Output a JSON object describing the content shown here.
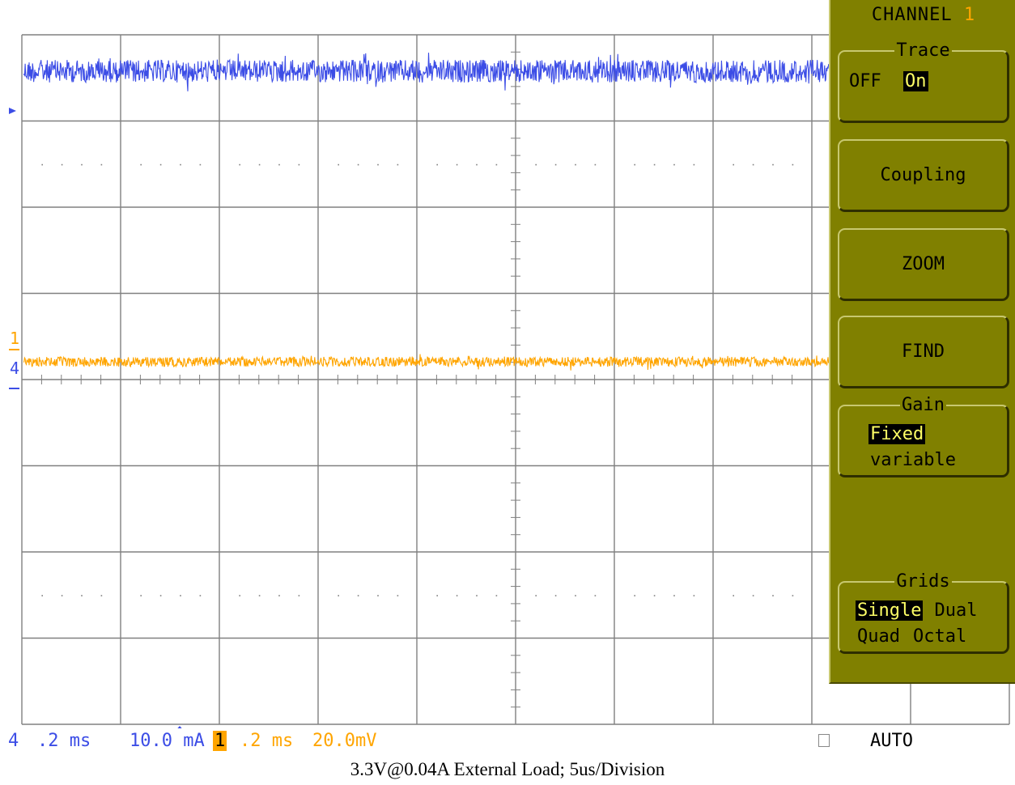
{
  "colors": {
    "channel4": "#3c4de6",
    "channel1": "#ffa500",
    "grid": "#808080",
    "menu_bg": "#808000"
  },
  "markers": {
    "ch1_label": "1",
    "ch4_label": "4"
  },
  "menu": {
    "title": "CHANNEL",
    "channel": "1",
    "trace": {
      "label": "Trace",
      "off": "OFF",
      "on": "On",
      "selected": "On"
    },
    "coupling": "Coupling",
    "zoom": "ZOOM",
    "find": "FIND",
    "gain": {
      "label": "Gain",
      "fixed": "Fixed",
      "variable": "variable",
      "selected": "Fixed"
    },
    "grids": {
      "label": "Grids",
      "single": "Single",
      "dual": "Dual",
      "quad": "Quad",
      "octal": "Octal",
      "selected": "Single"
    }
  },
  "status": {
    "ch4_num": "4",
    "ch4_time": ".2 ms",
    "ch4_scale": "10.0 mA",
    "ch1_num": "1",
    "ch1_time": ".2 ms",
    "ch1_scale": "20.0mV",
    "trigger_mode": "AUTO"
  },
  "caption": "3.3V@0.04A External Load; 5us/Division"
}
